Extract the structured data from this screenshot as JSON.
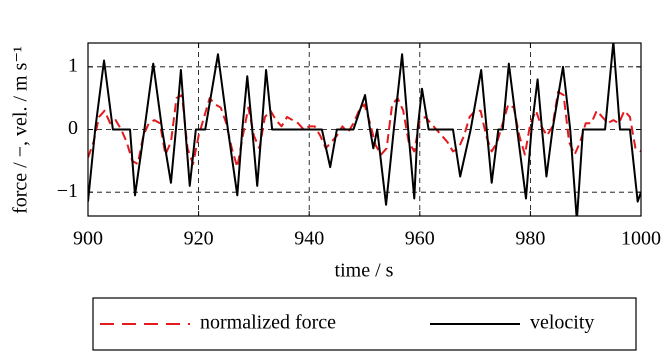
{
  "chart_data": {
    "type": "line",
    "xlabel": "time / s",
    "ylabel": "force / −, vel. / m s⁻¹",
    "xlim": [
      900,
      1000
    ],
    "xticks": [
      900,
      920,
      940,
      960,
      980,
      1000
    ],
    "ylim": [
      -1.38,
      1.38
    ],
    "yticks": [
      {
        "value": -1,
        "label": "−1"
      },
      0,
      1
    ],
    "grid": true,
    "legend": "below",
    "series": [
      {
        "name": "normalized force",
        "color": "#e41a1c",
        "linestyle": "dashed",
        "x": [
          900,
          901,
          902,
          903,
          904,
          905,
          906,
          907,
          908,
          909,
          910,
          911,
          912,
          913,
          914,
          915,
          916,
          917,
          918,
          919,
          920,
          921,
          922,
          923,
          924,
          925,
          926,
          927,
          928,
          929,
          930,
          931,
          932,
          933,
          934,
          935,
          936,
          937,
          938,
          939,
          940,
          941,
          942,
          943,
          944,
          945,
          946,
          947,
          948,
          949,
          950,
          951,
          952,
          953,
          954,
          955,
          956,
          957,
          958,
          959,
          960,
          961,
          962,
          963,
          964,
          965,
          966,
          967,
          968,
          969,
          970,
          971,
          972,
          973,
          974,
          975,
          976,
          977,
          978,
          979,
          980,
          981,
          982,
          983,
          984,
          985,
          986,
          987,
          988,
          989,
          990,
          991,
          992,
          993,
          994,
          995,
          996,
          997,
          998,
          999,
          1000
        ],
        "values": [
          -0.45,
          -0.2,
          0.2,
          0.3,
          0.1,
          0.15,
          0,
          -0.2,
          -0.5,
          -0.55,
          -0.1,
          0.1,
          0.15,
          0.1,
          -0.4,
          -0.2,
          0.5,
          0.55,
          -0.3,
          -0.55,
          -0.1,
          0.2,
          0.5,
          0.4,
          0.35,
          0.1,
          -0.3,
          -0.6,
          -0.1,
          0.35,
          -0.1,
          -0.3,
          0.2,
          0.3,
          0.15,
          0.05,
          0.2,
          0.15,
          0.1,
          0,
          0.05,
          0.05,
          -0.1,
          -0.3,
          -0.2,
          -0.1,
          0.05,
          -0.05,
          0.1,
          0.3,
          0.4,
          0.1,
          -0.25,
          -0.4,
          -0.3,
          0.4,
          0.5,
          0.3,
          -0.2,
          -0.35,
          0.15,
          0.2,
          0.1,
          0,
          -0.1,
          -0.2,
          -0.35,
          -0.3,
          -0.1,
          0.2,
          0.3,
          0.3,
          -0.1,
          -0.35,
          -0.2,
          0.1,
          0.4,
          0.35,
          -0.1,
          -0.4,
          0.1,
          0.3,
          0.05,
          -0.1,
          0.05,
          0.6,
          0.55,
          -0.2,
          -0.4,
          -0.2,
          0.1,
          0.1,
          0.3,
          0.2,
          0.1,
          0.15,
          0.1,
          0.3,
          0.2,
          -0.3,
          -0.35
        ]
      },
      {
        "name": "velocity",
        "color": "#000000",
        "linestyle": "solid",
        "x": [
          900,
          901.3,
          902.9,
          904.5,
          907.6,
          908.5,
          910.2,
          911.8,
          913.4,
          915,
          915.9,
          916.8,
          917.6,
          918.4,
          919.5,
          921.2,
          923.5,
          925.3,
          927,
          927.9,
          928.8,
          929.7,
          930.6,
          931.4,
          932.2,
          933.3,
          942.3,
          943.8,
          945,
          948,
          950.1,
          951,
          951.6,
          952.3,
          953.9,
          955.3,
          956.8,
          957.9,
          959,
          959.6,
          960.4,
          961.6,
          966,
          967.3,
          969.2,
          971.1,
          972.1,
          973,
          974.2,
          975,
          976.1,
          977.6,
          979.2,
          980.2,
          981.3,
          982.1,
          982.9,
          984,
          985.9,
          987.2,
          988.4,
          989.5,
          993.5,
          995,
          996.2,
          998,
          999.4,
          1000
        ],
        "values": [
          -1.15,
          0,
          1.1,
          0,
          0,
          -1.05,
          0,
          1.05,
          0,
          -0.85,
          0,
          0.95,
          0,
          -0.9,
          0,
          0,
          1.2,
          0,
          -1.05,
          0,
          0.85,
          0,
          -0.9,
          0,
          0.95,
          0,
          0,
          -0.6,
          0,
          0,
          0.55,
          0,
          -0.3,
          0,
          -1.2,
          0,
          1.2,
          0,
          -1.1,
          0,
          0.65,
          0,
          0,
          -0.75,
          0,
          0.95,
          0,
          -0.85,
          0,
          0,
          1.05,
          0,
          -1.1,
          0,
          0.8,
          0,
          -0.75,
          0,
          1.0,
          0,
          -1.45,
          0,
          0,
          1.4,
          0,
          0,
          -1.15,
          -1.0
        ]
      }
    ]
  }
}
